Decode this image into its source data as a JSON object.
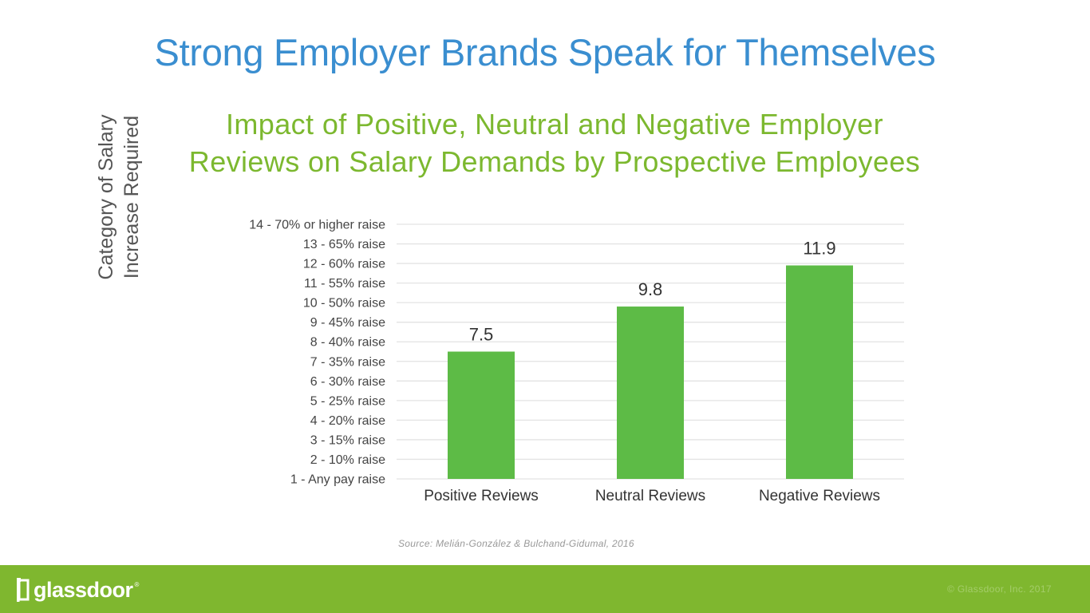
{
  "page": {
    "title": "Strong Employer Brands Speak for Themselves",
    "subtitle_line1": "Impact of Positive, Neutral and Negative Employer",
    "subtitle_line2": "Reviews on Salary Demands by Prospective Employees",
    "source": "Source: Melián-González & Bulchand-Gidumal, 2016"
  },
  "chart_data": {
    "type": "bar",
    "title": "Impact of Positive, Neutral and Negative Employer Reviews on Salary Demands by Prospective Employees",
    "ylabel_line1": "Category of Salary",
    "ylabel_line2": "Increase Required",
    "xlabel": "",
    "ylim": [
      1,
      14
    ],
    "grid": true,
    "categories": [
      "Positive Reviews",
      "Neutral Reviews",
      "Negative Reviews"
    ],
    "values": [
      7.5,
      9.8,
      11.9
    ],
    "data_labels": [
      "7.5",
      "9.8",
      "11.9"
    ],
    "ytick_values": [
      1,
      2,
      3,
      4,
      5,
      6,
      7,
      8,
      9,
      10,
      11,
      12,
      13,
      14
    ],
    "ytick_labels": [
      "1 - Any pay raise",
      "2 - 10% raise",
      "3 - 15% raise",
      "4 - 20% raise",
      "5 - 25% raise",
      "6 - 30% raise",
      "7 - 35% raise",
      "8 - 40% raise",
      "9 - 45% raise",
      "10 - 50% raise",
      "11 - 55% raise",
      "12 - 60% raise",
      "13 - 65% raise",
      "14 - 70% or higher raise"
    ],
    "colors": {
      "bar": "#5dbb46",
      "grid": "#e3e3e3",
      "tick_text": "#444444",
      "label_text": "#333333"
    }
  },
  "footer": {
    "logo_text": "glassdoor",
    "logo_reg": "®",
    "copyright": "© Glassdoor, Inc. 2017",
    "background": "#7fb72f"
  }
}
